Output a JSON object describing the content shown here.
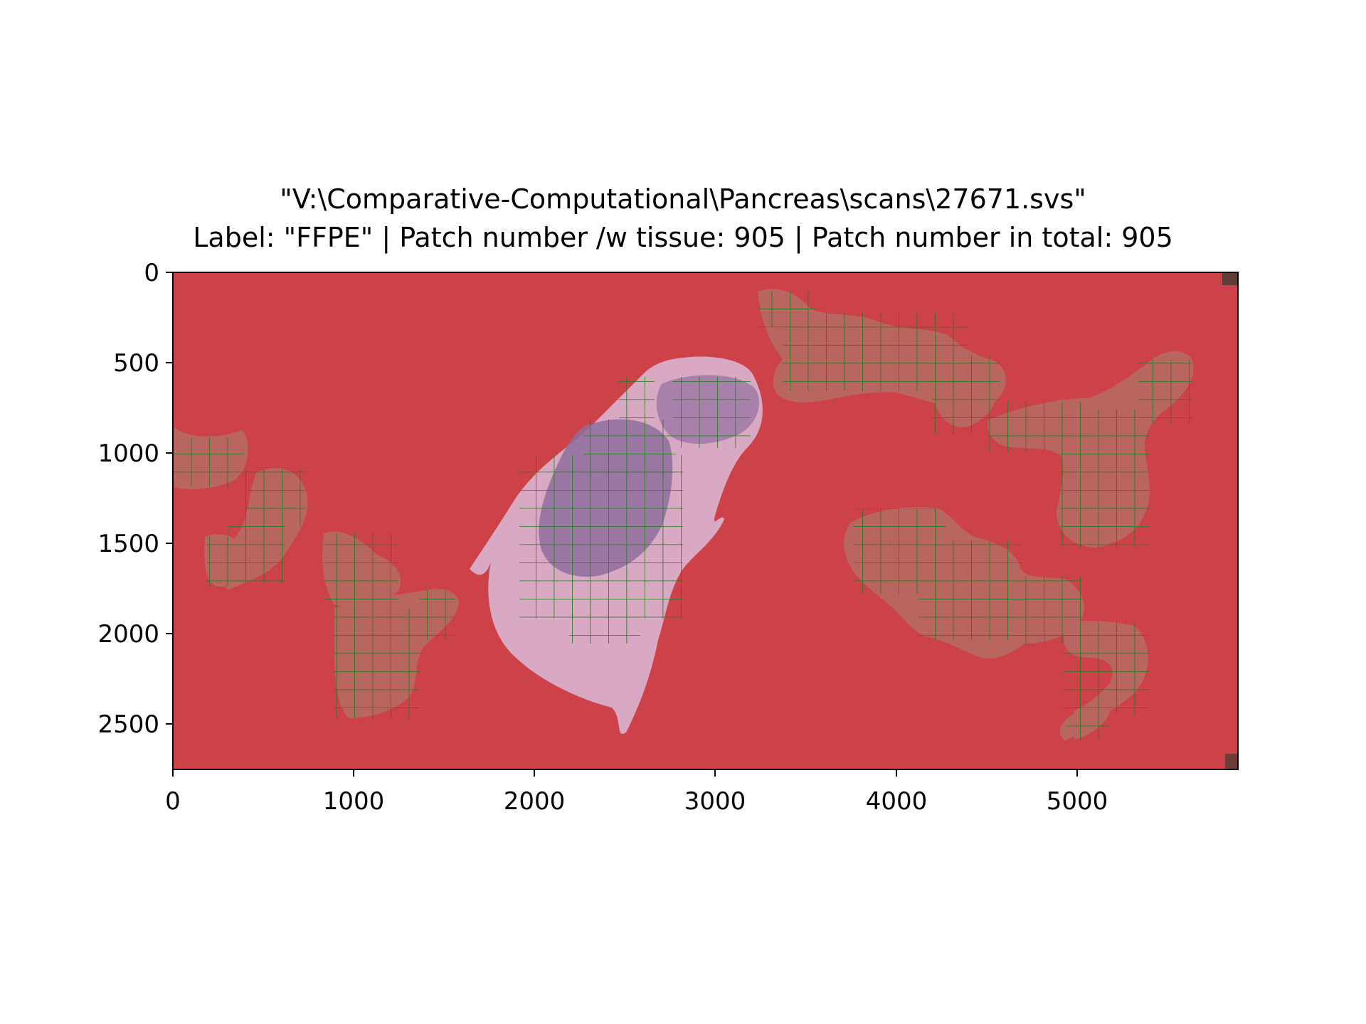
{
  "figure": {
    "title_line_1": "\"V:\\Comparative-Computational\\Pancreas\\scans\\27671.svs\"",
    "title_line_2": "Label: \"FFPE\" | Patch number /w tissue: 905 | Patch number in total: 905",
    "colors": {
      "background_overlay": "#cd4148",
      "tissue_tint": "#b8665f",
      "tissue_pink": "#d8a9c3",
      "tissue_purple": "#8c6d9a",
      "patch_grid": "#1f7a1f",
      "axis": "#000000"
    }
  },
  "axes": {
    "x_ticks": [
      "0",
      "1000",
      "2000",
      "3000",
      "4000",
      "5000"
    ],
    "y_ticks": [
      "0",
      "500",
      "1000",
      "1500",
      "2000",
      "2500"
    ],
    "x_range": [
      0,
      5860
    ],
    "y_range": [
      2750,
      0
    ]
  }
}
